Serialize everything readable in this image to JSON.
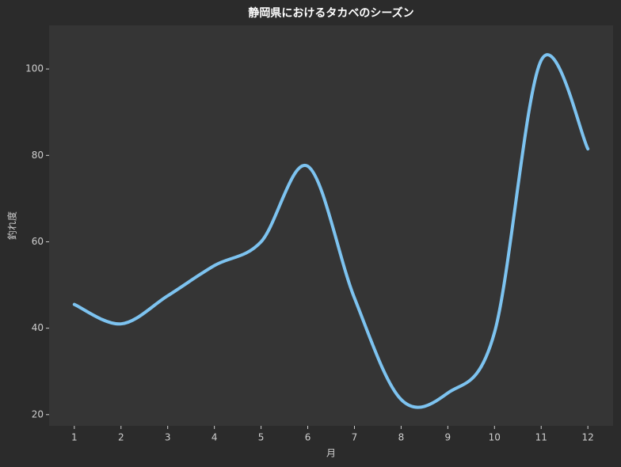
{
  "chart_data": {
    "type": "line",
    "title": "静岡県におけるタカベのシーズン",
    "x_label": "月",
    "y_label": "釣れ度",
    "x": [
      1,
      2,
      3,
      4,
      5,
      6,
      7,
      8,
      9,
      10,
      11,
      12
    ],
    "series": [
      {
        "color": "#7dc3f0",
        "values": [
          45.5,
          41,
          47.5,
          54.5,
          60,
          77.5,
          47,
          23.5,
          25,
          39,
          102,
          81.5
        ]
      }
    ],
    "xlim": [
      0.46,
      12.54
    ],
    "ylim": [
      17.4,
      110.1
    ],
    "xticks": [
      1,
      2,
      3,
      4,
      5,
      6,
      7,
      8,
      9,
      10,
      11,
      12
    ],
    "yticks": [
      20,
      40,
      60,
      80,
      100
    ],
    "grid": false
  }
}
